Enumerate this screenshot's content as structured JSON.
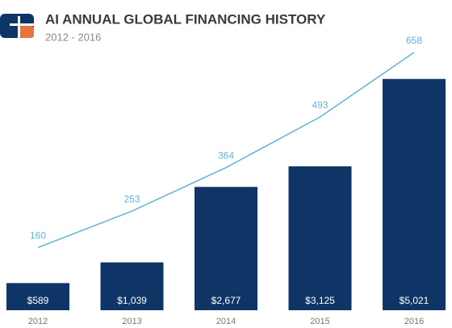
{
  "chart_data": {
    "type": "bar",
    "title": "AI ANNUAL GLOBAL FINANCING HISTORY",
    "subtitle": "2012 - 2016",
    "categories": [
      "2012",
      "2013",
      "2014",
      "2015",
      "2016"
    ],
    "series": [
      {
        "type": "bar",
        "color": "#0f3566",
        "values": [
          589,
          1039,
          2677,
          3125,
          5021
        ],
        "value_labels": [
          "$589",
          "$1,039",
          "$2,677",
          "$3,125",
          "$5,021"
        ]
      },
      {
        "type": "line",
        "axis": "y2",
        "color": "#62b4d4",
        "values": [
          160,
          253,
          364,
          493,
          658
        ]
      }
    ],
    "ylim": [
      0,
      5700
    ],
    "y2lim": [
      0,
      670
    ]
  }
}
